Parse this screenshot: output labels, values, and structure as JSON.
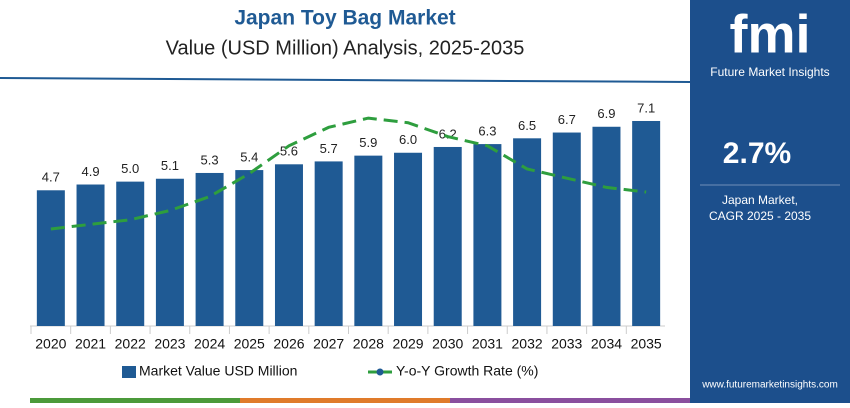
{
  "chart_data": {
    "type": "bar",
    "title": "Japan Toy Bag Market",
    "subtitle": "Value (USD Million) Analysis, 2025-2035",
    "categories": [
      "2020",
      "2021",
      "2022",
      "2023",
      "2024",
      "2025",
      "2026",
      "2027",
      "2028",
      "2029",
      "2030",
      "2031",
      "2032",
      "2033",
      "2034",
      "2035"
    ],
    "series": [
      {
        "name": "Market Value USD Million",
        "type": "bar",
        "color": "#1f5a94",
        "values": [
          4.7,
          4.9,
          5.0,
          5.1,
          5.3,
          5.4,
          5.6,
          5.7,
          5.9,
          6.0,
          6.2,
          6.3,
          6.5,
          6.7,
          6.9,
          7.1
        ],
        "value_labels": [
          "4.7",
          "4.9",
          "5.0",
          "5.1",
          "5.3",
          "5.4",
          "5.6",
          "5.7",
          "5.9",
          "6.0",
          "6.2",
          "6.3",
          "6.5",
          "6.7",
          "6.9",
          "7.1"
        ]
      },
      {
        "name": "Y-o-Y Growth Rate (%)",
        "type": "line",
        "axis": "y2",
        "color": "#2e9e3e",
        "values": [
          2.1,
          2.2,
          2.3,
          2.5,
          2.8,
          3.3,
          3.9,
          4.3,
          4.5,
          4.4,
          4.1,
          3.9,
          3.4,
          3.2,
          3.0,
          2.9
        ]
      }
    ],
    "ylim": [
      0,
      8
    ],
    "y2lim": [
      0,
      5
    ]
  },
  "sidebar": {
    "logo": "fmi",
    "brand": "Future Market Insights",
    "cagr": "2.7%",
    "caption_line1": "Japan Market,",
    "caption_line2": "CAGR 2025 - 2035",
    "website": "www.futuremarketinsights.com"
  }
}
